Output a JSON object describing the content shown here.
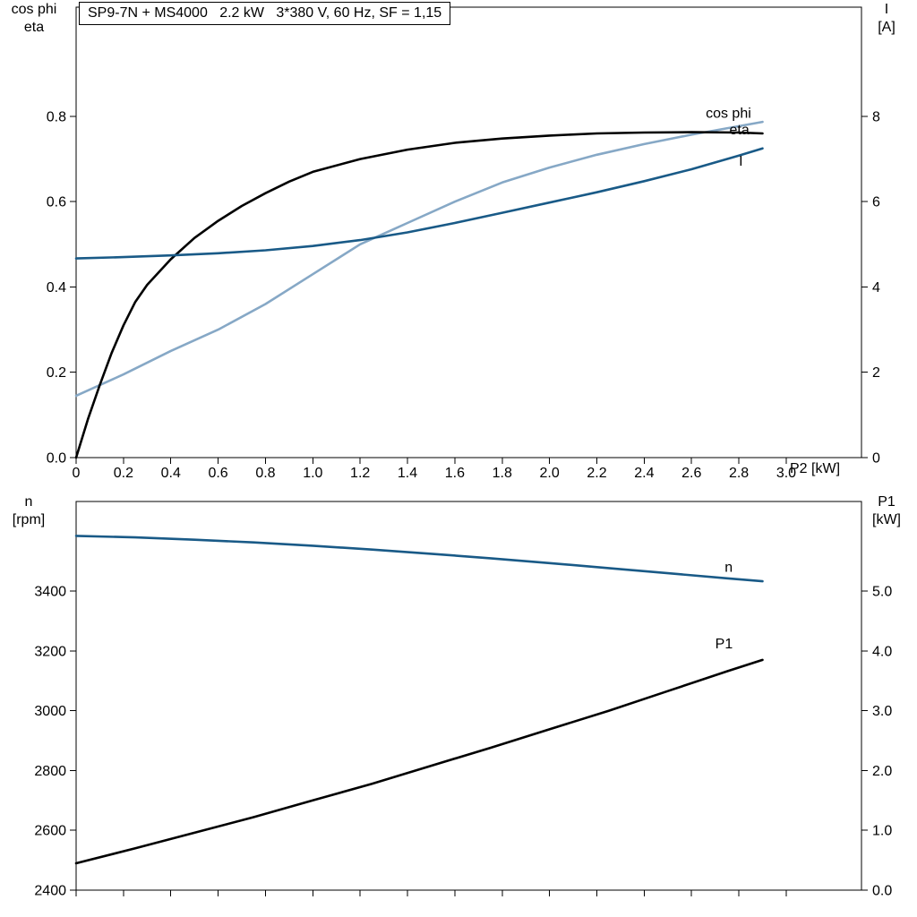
{
  "header": {
    "title_box": "SP9-7N + MS4000   2.2 kW   3*380 V, 60 Hz, SF = 1,15"
  },
  "top_chart_labels": {
    "left_line1": "cos phi",
    "left_line2": "eta",
    "right_line1": "I",
    "right_line2": "[A]",
    "x_axis": "P2 [kW]"
  },
  "bottom_chart_labels": {
    "left_line1": "n",
    "left_line2": "[rpm]",
    "right_line1": "P1",
    "right_line2": "[kW]"
  },
  "colors": {
    "light_blue": "#86a8c6",
    "dark_blue": "#195a87",
    "black": "#000000"
  },
  "chart_data": [
    {
      "type": "line",
      "title": "SP9-7N + MS4000   2.2 kW   3*380 V, 60 Hz, SF = 1,15",
      "xlabel": "P2 [kW]",
      "xlim": [
        0,
        3.318
      ],
      "xticks": [
        0,
        0.2,
        0.4,
        0.6,
        0.8,
        1.0,
        1.2,
        1.4,
        1.6,
        1.8,
        2.0,
        2.2,
        2.4,
        2.6,
        2.8,
        3.0
      ],
      "xtick_labels": [
        "0",
        "0.2",
        "0.4",
        "0.6",
        "0.8",
        "1.0",
        "1.2",
        "1.4",
        "1.6",
        "1.8",
        "2.0",
        "2.2",
        "2.4",
        "2.6",
        "2.8",
        "3.0"
      ],
      "left_axis": {
        "label": "cos phi / eta",
        "lim": [
          0,
          1.056
        ],
        "ticks": [
          0,
          0.2,
          0.4,
          0.6,
          0.8
        ],
        "tick_labels": [
          "0.0",
          "0.2",
          "0.4",
          "0.6",
          "0.8"
        ]
      },
      "right_axis": {
        "label": "I [A]",
        "lim": [
          0,
          10.56
        ],
        "ticks": [
          0,
          2,
          4,
          6,
          8
        ],
        "tick_labels": [
          "0",
          "2",
          "4",
          "6",
          "8"
        ]
      },
      "series": [
        {
          "name": "cos phi",
          "axis": "left",
          "color": "light_blue",
          "x": [
            0,
            0.2,
            0.4,
            0.6,
            0.8,
            1.0,
            1.2,
            1.4,
            1.6,
            1.8,
            2.0,
            2.2,
            2.4,
            2.6,
            2.8,
            2.9
          ],
          "y": [
            0.145,
            0.195,
            0.25,
            0.3,
            0.36,
            0.43,
            0.5,
            0.55,
            0.6,
            0.645,
            0.68,
            0.71,
            0.735,
            0.757,
            0.777,
            0.787
          ],
          "label": {
            "text": "cos phi",
            "x": 2.66,
            "y": 0.807
          }
        },
        {
          "name": "eta",
          "axis": "left",
          "color": "black",
          "x": [
            0,
            0.05,
            0.1,
            0.15,
            0.2,
            0.25,
            0.3,
            0.4,
            0.5,
            0.6,
            0.7,
            0.8,
            0.9,
            1.0,
            1.2,
            1.4,
            1.6,
            1.8,
            2.0,
            2.2,
            2.4,
            2.6,
            2.8,
            2.9
          ],
          "y": [
            0,
            0.09,
            0.17,
            0.245,
            0.31,
            0.365,
            0.405,
            0.465,
            0.515,
            0.555,
            0.59,
            0.62,
            0.647,
            0.67,
            0.7,
            0.722,
            0.738,
            0.748,
            0.755,
            0.76,
            0.762,
            0.763,
            0.762,
            0.76
          ],
          "label": {
            "text": "eta",
            "x": 2.76,
            "y": 0.768
          }
        },
        {
          "name": "I",
          "axis": "right",
          "color": "dark_blue",
          "x": [
            0,
            0.2,
            0.4,
            0.6,
            0.8,
            1.0,
            1.2,
            1.4,
            1.6,
            1.8,
            2.0,
            2.2,
            2.4,
            2.6,
            2.8,
            2.9
          ],
          "y": [
            4.67,
            4.7,
            4.74,
            4.79,
            4.86,
            4.96,
            5.1,
            5.28,
            5.5,
            5.74,
            5.98,
            6.22,
            6.48,
            6.76,
            7.08,
            7.25
          ],
          "label": {
            "text": "I",
            "x": 2.8,
            "y": 6.95
          }
        }
      ]
    },
    {
      "type": "line",
      "title": "",
      "xlabel": "",
      "xlim": [
        0,
        3.318
      ],
      "xticks": [
        0,
        0.2,
        0.4,
        0.6,
        0.8,
        1.0,
        1.2,
        1.4,
        1.6,
        1.8,
        2.0,
        2.2,
        2.4,
        2.6,
        2.8,
        3.0
      ],
      "xtick_labels": null,
      "left_axis": {
        "label": "n [rpm]",
        "lim": [
          2400,
          3700
        ],
        "ticks": [
          2400,
          2600,
          2800,
          3000,
          3200,
          3400
        ],
        "tick_labels": [
          "2400",
          "2600",
          "2800",
          "3000",
          "3200",
          "3400"
        ]
      },
      "right_axis": {
        "label": "P1 [kW]",
        "lim": [
          0,
          6.5
        ],
        "ticks": [
          0,
          1,
          2,
          3,
          4,
          5
        ],
        "tick_labels": [
          "0.0",
          "1.0",
          "2.0",
          "3.0",
          "4.0",
          "5.0"
        ]
      },
      "series": [
        {
          "name": "n",
          "axis": "left",
          "color": "dark_blue",
          "x": [
            0,
            0.25,
            0.5,
            0.75,
            1.0,
            1.25,
            1.5,
            1.75,
            2.0,
            2.25,
            2.5,
            2.75,
            2.9
          ],
          "y": [
            3585,
            3580,
            3572,
            3563,
            3552,
            3539,
            3525,
            3510,
            3494,
            3477,
            3460,
            3443,
            3433
          ],
          "label": {
            "text": "n",
            "x": 2.74,
            "y": 3480
          }
        },
        {
          "name": "P1",
          "axis": "right",
          "color": "black",
          "x": [
            0,
            0.25,
            0.5,
            0.75,
            1.0,
            1.25,
            1.5,
            1.75,
            2.0,
            2.25,
            2.5,
            2.75,
            2.9
          ],
          "y": [
            0.45,
            0.7,
            0.96,
            1.22,
            1.5,
            1.78,
            2.08,
            2.38,
            2.69,
            3.0,
            3.33,
            3.66,
            3.85
          ],
          "label": {
            "text": "P1",
            "x": 2.7,
            "y": 4.12
          }
        }
      ]
    }
  ]
}
